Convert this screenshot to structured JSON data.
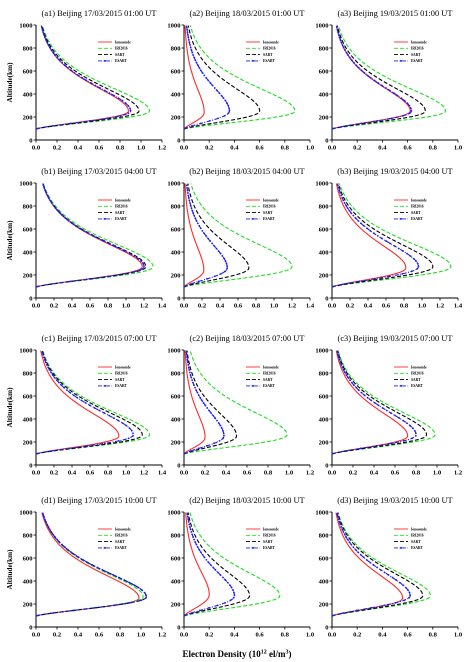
{
  "figure": {
    "xlabel": "Electron Density (10",
    "xlabel_exp": "12",
    "xlabel_unit": " el/m",
    "xlabel_unit_exp": "3",
    "xlabel_close": ")"
  },
  "legend": [
    {
      "name": "Ionosonde",
      "color": "#ff2a2a",
      "style": "solid",
      "marker": ""
    },
    {
      "name": "IRI2016",
      "color": "#22dd22",
      "style": "dash",
      "marker": ""
    },
    {
      "name": "SART",
      "color": "#000000",
      "style": "dash",
      "marker": ""
    },
    {
      "name": "ESART",
      "color": "#1a1aff",
      "style": "dashdot",
      "marker": "dot"
    }
  ],
  "chart_data": [
    {
      "type": "line",
      "id": "a1",
      "title": "(a1) Beijing 17/03/2015  01:00 UT",
      "ylabel": "Altitude(km)",
      "xlim": [
        0,
        1.2
      ],
      "xticks": [
        "0.0",
        "0.2",
        "0.4",
        "0.6",
        "0.8",
        "1.0",
        "1.2"
      ],
      "ylim": [
        0,
        1000
      ],
      "yticks": [
        "0",
        "200",
        "400",
        "600",
        "800",
        "1000"
      ],
      "series": [
        {
          "name": "Ionosonde",
          "nmax": 0.88,
          "hmax": 250
        },
        {
          "name": "IRI2016",
          "nmax": 1.08,
          "hmax": 250
        },
        {
          "name": "SART",
          "nmax": 0.98,
          "hmax": 250
        },
        {
          "name": "ESART",
          "nmax": 0.9,
          "hmax": 250
        }
      ]
    },
    {
      "type": "line",
      "id": "a2",
      "title": "(a2) Beijing 18/03/2015  01:00 UT",
      "ylabel": "",
      "xlim": [
        0,
        1.0
      ],
      "xticks": [
        "0.0",
        "0.2",
        "0.4",
        "0.6",
        "0.8",
        "1.0"
      ],
      "ylim": [
        0,
        1000
      ],
      "yticks": [
        "0",
        "200",
        "400",
        "600",
        "800",
        "1000"
      ],
      "series": [
        {
          "name": "Ionosonde",
          "nmax": 0.16,
          "hmax": 240
        },
        {
          "name": "IRI2016",
          "nmax": 0.88,
          "hmax": 250
        },
        {
          "name": "SART",
          "nmax": 0.6,
          "hmax": 250
        },
        {
          "name": "ESART",
          "nmax": 0.36,
          "hmax": 250
        }
      ]
    },
    {
      "type": "line",
      "id": "a3",
      "title": "(a3) Beijing 19/03/2015  01:00 UT",
      "ylabel": "",
      "xlim": [
        0,
        1.0
      ],
      "xticks": [
        "0.0",
        "0.2",
        "0.4",
        "0.6",
        "0.8",
        "1.0"
      ],
      "ylim": [
        0,
        1000
      ],
      "yticks": [
        "0",
        "200",
        "400",
        "600",
        "800",
        "1000"
      ],
      "series": [
        {
          "name": "Ionosonde",
          "nmax": 0.62,
          "hmax": 250
        },
        {
          "name": "IRI2016",
          "nmax": 0.9,
          "hmax": 250
        },
        {
          "name": "SART",
          "nmax": 0.74,
          "hmax": 250
        },
        {
          "name": "ESART",
          "nmax": 0.63,
          "hmax": 250
        }
      ]
    },
    {
      "type": "line",
      "id": "b1",
      "title": "(b1) Beijing 17/03/2015  04:00 UT",
      "ylabel": "Altitude(km)",
      "xlim": [
        0,
        1.4
      ],
      "xticks": [
        "0.0",
        "0.2",
        "0.4",
        "0.6",
        "0.8",
        "1.0",
        "1.2",
        "1.4"
      ],
      "ylim": [
        0,
        1000
      ],
      "yticks": [
        "0",
        "200",
        "400",
        "600",
        "800",
        "1000"
      ],
      "series": [
        {
          "name": "Ionosonde",
          "nmax": 1.18,
          "hmax": 270
        },
        {
          "name": "IRI2016",
          "nmax": 1.3,
          "hmax": 270
        },
        {
          "name": "SART",
          "nmax": 1.22,
          "hmax": 270
        },
        {
          "name": "ESART",
          "nmax": 1.2,
          "hmax": 270
        }
      ]
    },
    {
      "type": "line",
      "id": "b2",
      "title": "(b2) Beijing 18/03/2015  04:00 UT",
      "ylabel": "",
      "xlim": [
        0,
        1.4
      ],
      "xticks": [
        "0.0",
        "0.2",
        "0.4",
        "0.6",
        "0.8",
        "1.0",
        "1.2",
        "1.4"
      ],
      "ylim": [
        0,
        1000
      ],
      "yticks": [
        "0",
        "200",
        "400",
        "600",
        "800",
        "1000"
      ],
      "series": [
        {
          "name": "Ionosonde",
          "nmax": 0.22,
          "hmax": 240
        },
        {
          "name": "IRI2016",
          "nmax": 1.2,
          "hmax": 270
        },
        {
          "name": "SART",
          "nmax": 0.72,
          "hmax": 260
        },
        {
          "name": "ESART",
          "nmax": 0.48,
          "hmax": 260
        }
      ]
    },
    {
      "type": "line",
      "id": "b3",
      "title": "(b3) Beijing 19/03/2015  04:00 UT",
      "ylabel": "",
      "xlim": [
        0,
        1.4
      ],
      "xticks": [
        "0.0",
        "0.2",
        "0.4",
        "0.6",
        "0.8",
        "1.0",
        "1.2",
        "1.4"
      ],
      "ylim": [
        0,
        1000
      ],
      "yticks": [
        "0",
        "200",
        "400",
        "600",
        "800",
        "1000"
      ],
      "series": [
        {
          "name": "Ionosonde",
          "nmax": 0.82,
          "hmax": 260
        },
        {
          "name": "IRI2016",
          "nmax": 1.32,
          "hmax": 270
        },
        {
          "name": "SART",
          "nmax": 1.12,
          "hmax": 270
        },
        {
          "name": "ESART",
          "nmax": 0.96,
          "hmax": 270
        }
      ]
    },
    {
      "type": "line",
      "id": "c1",
      "title": "(c1) Beijing 17/03/2015  07:00 UT",
      "ylabel": "Altitude(km)",
      "xlim": [
        0,
        1.4
      ],
      "xticks": [
        "0.0",
        "0.2",
        "0.4",
        "0.6",
        "0.8",
        "1.0",
        "1.2",
        "1.4"
      ],
      "ylim": [
        0,
        1000
      ],
      "yticks": [
        "0",
        "200",
        "400",
        "600",
        "800",
        "1000"
      ],
      "series": [
        {
          "name": "Ionosonde",
          "nmax": 0.92,
          "hmax": 250
        },
        {
          "name": "IRI2016",
          "nmax": 1.26,
          "hmax": 260
        },
        {
          "name": "SART",
          "nmax": 1.18,
          "hmax": 260
        },
        {
          "name": "ESART",
          "nmax": 1.08,
          "hmax": 260
        }
      ]
    },
    {
      "type": "line",
      "id": "c2",
      "title": "(c2) Beijing 18/03/2015  07:00 UT",
      "ylabel": "",
      "xlim": [
        0,
        1.2
      ],
      "xticks": [
        "0.0",
        "0.2",
        "0.4",
        "0.6",
        "0.8",
        "1.0",
        "1.2"
      ],
      "ylim": [
        0,
        1000
      ],
      "yticks": [
        "0",
        "200",
        "400",
        "600",
        "800",
        "1000"
      ],
      "series": [
        {
          "name": "Ionosonde",
          "nmax": 0.2,
          "hmax": 240
        },
        {
          "name": "IRI2016",
          "nmax": 0.98,
          "hmax": 260
        },
        {
          "name": "SART",
          "nmax": 0.5,
          "hmax": 250
        },
        {
          "name": "ESART",
          "nmax": 0.38,
          "hmax": 250
        }
      ]
    },
    {
      "type": "line",
      "id": "c3",
      "title": "(c3) Beijing 19/03/2015  07:00 UT",
      "ylabel": "",
      "xlim": [
        0,
        1.2
      ],
      "xticks": [
        "0.0",
        "0.2",
        "0.4",
        "0.6",
        "0.8",
        "1.0",
        "1.2"
      ],
      "ylim": [
        0,
        1000
      ],
      "yticks": [
        "0",
        "200",
        "400",
        "600",
        "800",
        "1000"
      ],
      "series": [
        {
          "name": "Ionosonde",
          "nmax": 0.72,
          "hmax": 250
        },
        {
          "name": "IRI2016",
          "nmax": 0.98,
          "hmax": 260
        },
        {
          "name": "SART",
          "nmax": 0.9,
          "hmax": 260
        },
        {
          "name": "ESART",
          "nmax": 0.8,
          "hmax": 260
        }
      ]
    },
    {
      "type": "line",
      "id": "d1",
      "title": "(d1) Beijing 17/03/2015  10:00 UT",
      "ylabel": "Altitude(km)",
      "xlim": [
        0,
        1.2
      ],
      "xticks": [
        "0.0",
        "0.2",
        "0.4",
        "0.6",
        "0.8",
        "1.0",
        "1.2"
      ],
      "ylim": [
        0,
        1000
      ],
      "yticks": [
        "0",
        "200",
        "400",
        "600",
        "800",
        "1000"
      ],
      "series": [
        {
          "name": "Ionosonde",
          "nmax": 0.98,
          "hmax": 250
        },
        {
          "name": "IRI2016",
          "nmax": 1.02,
          "hmax": 260
        },
        {
          "name": "SART",
          "nmax": 1.05,
          "hmax": 260
        },
        {
          "name": "ESART",
          "nmax": 1.05,
          "hmax": 260
        }
      ]
    },
    {
      "type": "line",
      "id": "d2",
      "title": "(d2) Beijing 18/03/2015  10:00 UT",
      "ylabel": "",
      "xlim": [
        0,
        1.0
      ],
      "xticks": [
        "0.0",
        "0.2",
        "0.4",
        "0.6",
        "0.8",
        "1.0"
      ],
      "ylim": [
        0,
        1000
      ],
      "yticks": [
        "0",
        "200",
        "400",
        "600",
        "800",
        "1000"
      ],
      "series": [
        {
          "name": "Ionosonde",
          "nmax": 0.2,
          "hmax": 280
        },
        {
          "name": "IRI2016",
          "nmax": 0.76,
          "hmax": 270
        },
        {
          "name": "SART",
          "nmax": 0.52,
          "hmax": 270
        },
        {
          "name": "ESART",
          "nmax": 0.4,
          "hmax": 270
        }
      ]
    },
    {
      "type": "line",
      "id": "d3",
      "title": "(d3) Beijing 19/03/2015  10:00 UT",
      "ylabel": "",
      "xlim": [
        0,
        1.0
      ],
      "xticks": [
        "0.0",
        "0.2",
        "0.4",
        "0.6",
        "0.8",
        "1.0"
      ],
      "ylim": [
        0,
        1000
      ],
      "yticks": [
        "0",
        "200",
        "400",
        "600",
        "800",
        "1000"
      ],
      "series": [
        {
          "name": "Ionosonde",
          "nmax": 0.56,
          "hmax": 250
        },
        {
          "name": "IRI2016",
          "nmax": 0.78,
          "hmax": 270
        },
        {
          "name": "SART",
          "nmax": 0.72,
          "hmax": 270
        },
        {
          "name": "ESART",
          "nmax": 0.62,
          "hmax": 270
        }
      ]
    }
  ]
}
